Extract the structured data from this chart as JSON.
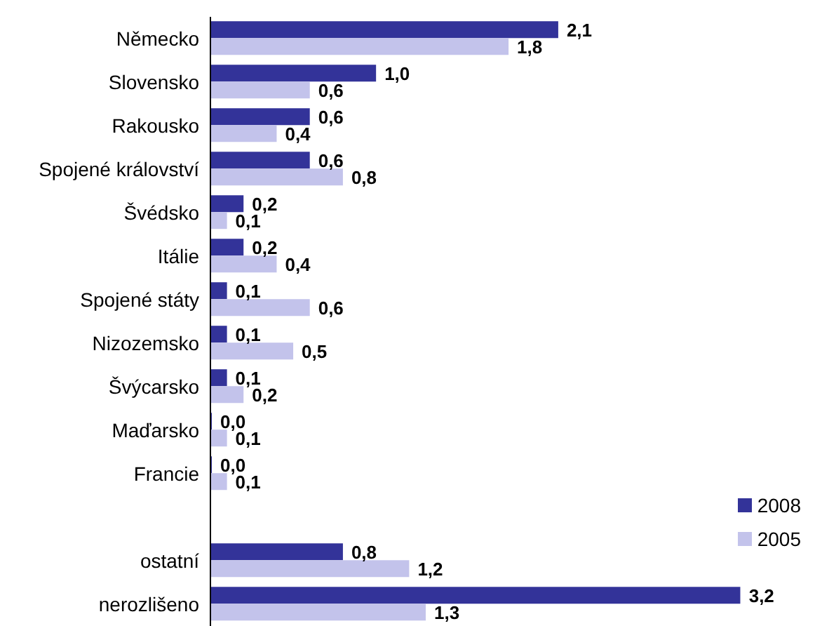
{
  "chart_data": {
    "type": "bar",
    "orientation": "horizontal",
    "categories": [
      "Německo",
      "Slovensko",
      "Rakousko",
      "Spojené království",
      "Švédsko",
      "Itálie",
      "Spojené státy",
      "Nizozemsko",
      "Švýcarsko",
      "Maďarsko",
      "Francie",
      null,
      "ostatní",
      "nerozlišeno"
    ],
    "series": [
      {
        "name": "2008",
        "color": "#333399",
        "values": [
          2.1,
          1.0,
          0.6,
          0.6,
          0.2,
          0.2,
          0.1,
          0.1,
          0.1,
          0.0,
          0.0,
          null,
          0.8,
          3.2
        ],
        "value_labels": [
          "2,1",
          "1,0",
          "0,6",
          "0,6",
          "0,2",
          "0,2",
          "0,1",
          "0,1",
          "0,1",
          "0,0",
          "0,0",
          null,
          "0,8",
          "3,2"
        ]
      },
      {
        "name": "2005",
        "color": "#c3c3eb",
        "values": [
          1.8,
          0.6,
          0.4,
          0.8,
          0.1,
          0.4,
          0.6,
          0.5,
          0.2,
          0.1,
          0.1,
          null,
          1.2,
          1.3
        ],
        "value_labels": [
          "1,8",
          "0,6",
          "0,4",
          "0,8",
          "0,1",
          "0,4",
          "0,6",
          "0,5",
          "0,2",
          "0,1",
          "0,1",
          null,
          "1,2",
          "1,3"
        ]
      }
    ],
    "legend": "bottom right"
  }
}
